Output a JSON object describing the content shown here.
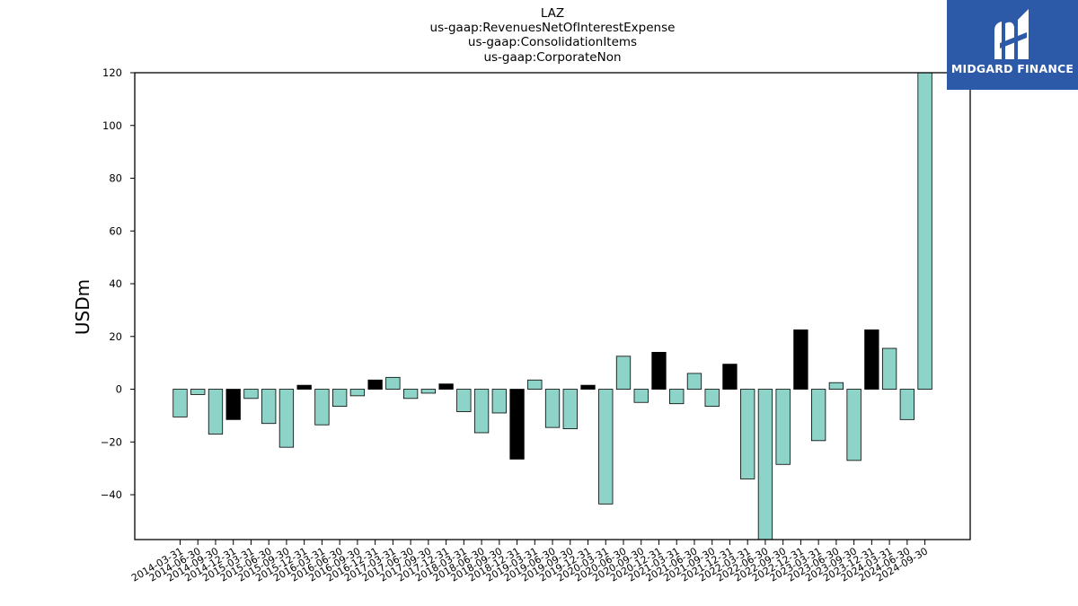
{
  "header": {
    "ticker": "LAZ",
    "line2": "us-gaap:RevenuesNetOfInterestExpense",
    "line3": "us-gaap:ConsolidationItems",
    "line4": "us-gaap:CorporateNon"
  },
  "brand": {
    "name": "MIDGARD FINANCE",
    "icon": "midgard-logo-icon",
    "color": "#2d5aa8"
  },
  "colors": {
    "positive_bar": "#8dd3c7",
    "highlight_bar": "#000000",
    "edge": "#000000"
  },
  "chart_data": {
    "type": "bar",
    "title": "LAZ",
    "ylabel": "USDm",
    "ylim": [
      -57,
      120
    ],
    "yticks": [
      -40,
      -20,
      0,
      20,
      40,
      60,
      80,
      100,
      120
    ],
    "ytick_labels": [
      "−40",
      "−20",
      "0",
      "20",
      "40",
      "60",
      "80",
      "100",
      "120"
    ],
    "grid": false,
    "categories": [
      "2014-03-31",
      "2014-06-30",
      "2014-09-30",
      "2014-12-31",
      "2015-03-31",
      "2015-06-30",
      "2015-09-30",
      "2015-12-31",
      "2016-03-31",
      "2016-06-30",
      "2016-09-30",
      "2016-12-31",
      "2017-03-31",
      "2017-06-30",
      "2017-09-30",
      "2017-12-31",
      "2018-03-31",
      "2018-06-30",
      "2018-09-30",
      "2018-12-31",
      "2019-03-31",
      "2019-06-30",
      "2019-09-30",
      "2019-12-31",
      "2020-03-31",
      "2020-06-30",
      "2020-09-30",
      "2020-12-31",
      "2021-03-31",
      "2021-06-30",
      "2021-09-30",
      "2021-12-31",
      "2022-03-31",
      "2022-06-30",
      "2022-09-30",
      "2022-12-31",
      "2023-03-31",
      "2023-06-30",
      "2023-09-30",
      "2023-12-31",
      "2024-03-31",
      "2024-06-30",
      "2024-09-30"
    ],
    "values": [
      -10.5,
      -2,
      -17,
      -11.5,
      -3.5,
      -13,
      -22,
      1.5,
      -13.5,
      -6.5,
      -2.5,
      3.5,
      4.5,
      -3.5,
      -1.5,
      2,
      -8.5,
      -16.5,
      -9,
      -26.5,
      3.5,
      -14.5,
      -15,
      1.5,
      -43.5,
      12.5,
      -5,
      14,
      -5.5,
      6,
      -6.5,
      9.5,
      -34,
      -57,
      -28.5,
      22.5,
      -19.5,
      2.5,
      -27,
      22.5,
      15.5,
      -11.5,
      120
    ],
    "highlight": [
      false,
      false,
      false,
      true,
      false,
      false,
      false,
      true,
      false,
      false,
      false,
      true,
      false,
      false,
      false,
      true,
      false,
      false,
      false,
      true,
      false,
      false,
      false,
      true,
      false,
      false,
      false,
      true,
      false,
      false,
      false,
      true,
      false,
      false,
      false,
      true,
      false,
      false,
      false,
      true,
      false,
      false,
      false
    ]
  }
}
